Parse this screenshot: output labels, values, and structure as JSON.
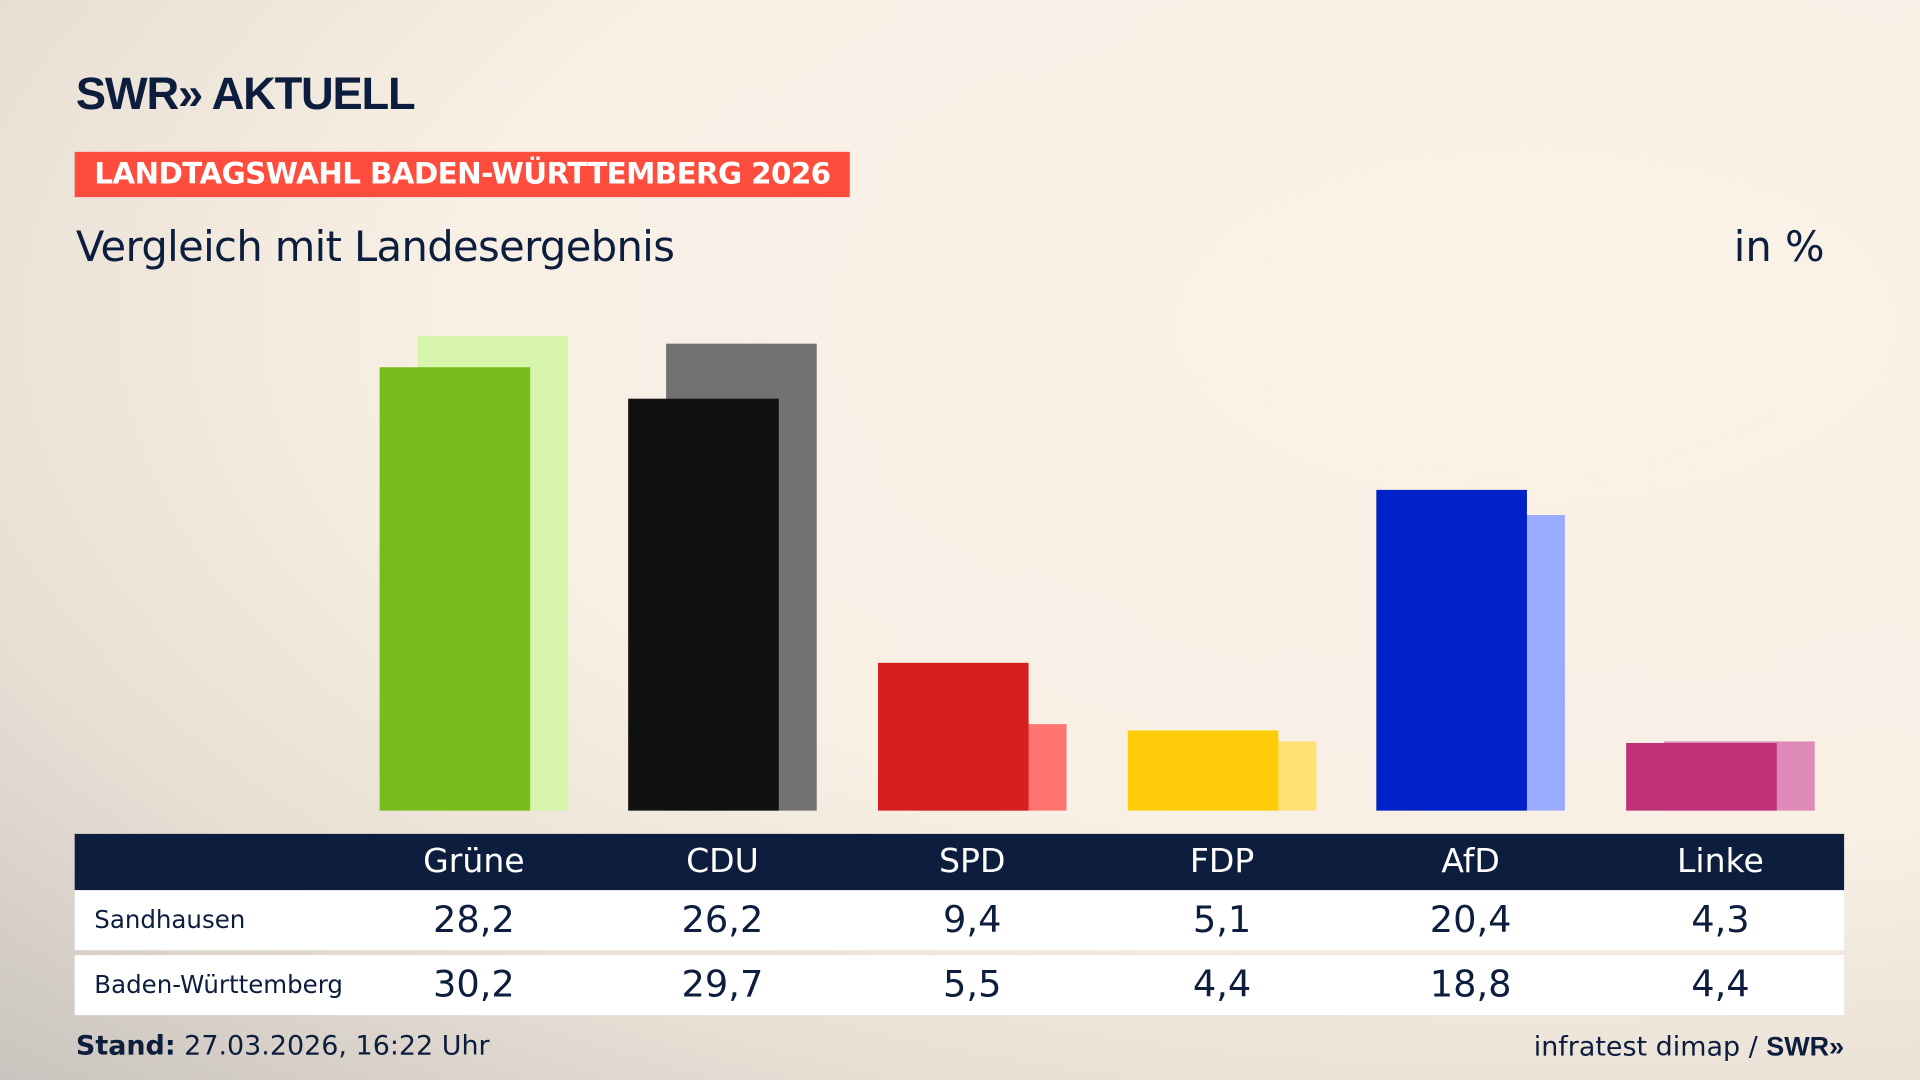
{
  "header": {
    "logo": "SWR» AKTUELL",
    "kicker": "LANDTAGSWAHL BADEN-WÜRTTEMBERG 2026",
    "subtitle": "Vergleich mit Landesergebnis",
    "unit": "in %"
  },
  "chart_data": {
    "type": "bar",
    "categories": [
      "Grüne",
      "CDU",
      "SPD",
      "FDP",
      "AfD",
      "Linke"
    ],
    "series": [
      {
        "name": "Sandhausen",
        "values": [
          28.2,
          26.2,
          9.4,
          5.1,
          20.4,
          4.3
        ],
        "colors": [
          "#78bc1b",
          "#111111",
          "#d61f1f",
          "#ffcc0a",
          "#0021c7",
          "#bf3177"
        ]
      },
      {
        "name": "Baden-Württemberg",
        "values": [
          30.2,
          29.7,
          5.5,
          4.4,
          18.8,
          4.4
        ],
        "colors": [
          "#d7f5aa",
          "#737171",
          "#ff7470",
          "#ffe173",
          "#9aabff",
          "#de8ab9"
        ]
      }
    ],
    "ylim": [
      0,
      30.2
    ],
    "grid": false
  },
  "table": {
    "headers": [
      "Grüne",
      "CDU",
      "SPD",
      "FDP",
      "AfD",
      "Linke"
    ],
    "rows": [
      {
        "label": "Sandhausen",
        "values": [
          "28,2",
          "26,2",
          "9,4",
          "5,1",
          "20,4",
          "4,3"
        ]
      },
      {
        "label": "Baden-Württemberg",
        "values": [
          "30,2",
          "29,7",
          "5,5",
          "4,4",
          "18,8",
          "4,4"
        ]
      }
    ]
  },
  "footer": {
    "stand_label": "Stand:",
    "stand_value": " 27.03.2026, 16:22 Uhr",
    "source": "infratest dimap / ",
    "source_logo": "SWR»"
  },
  "colors": {
    "navy": "#0c1d3d",
    "kicker": "#ff4d3d"
  }
}
